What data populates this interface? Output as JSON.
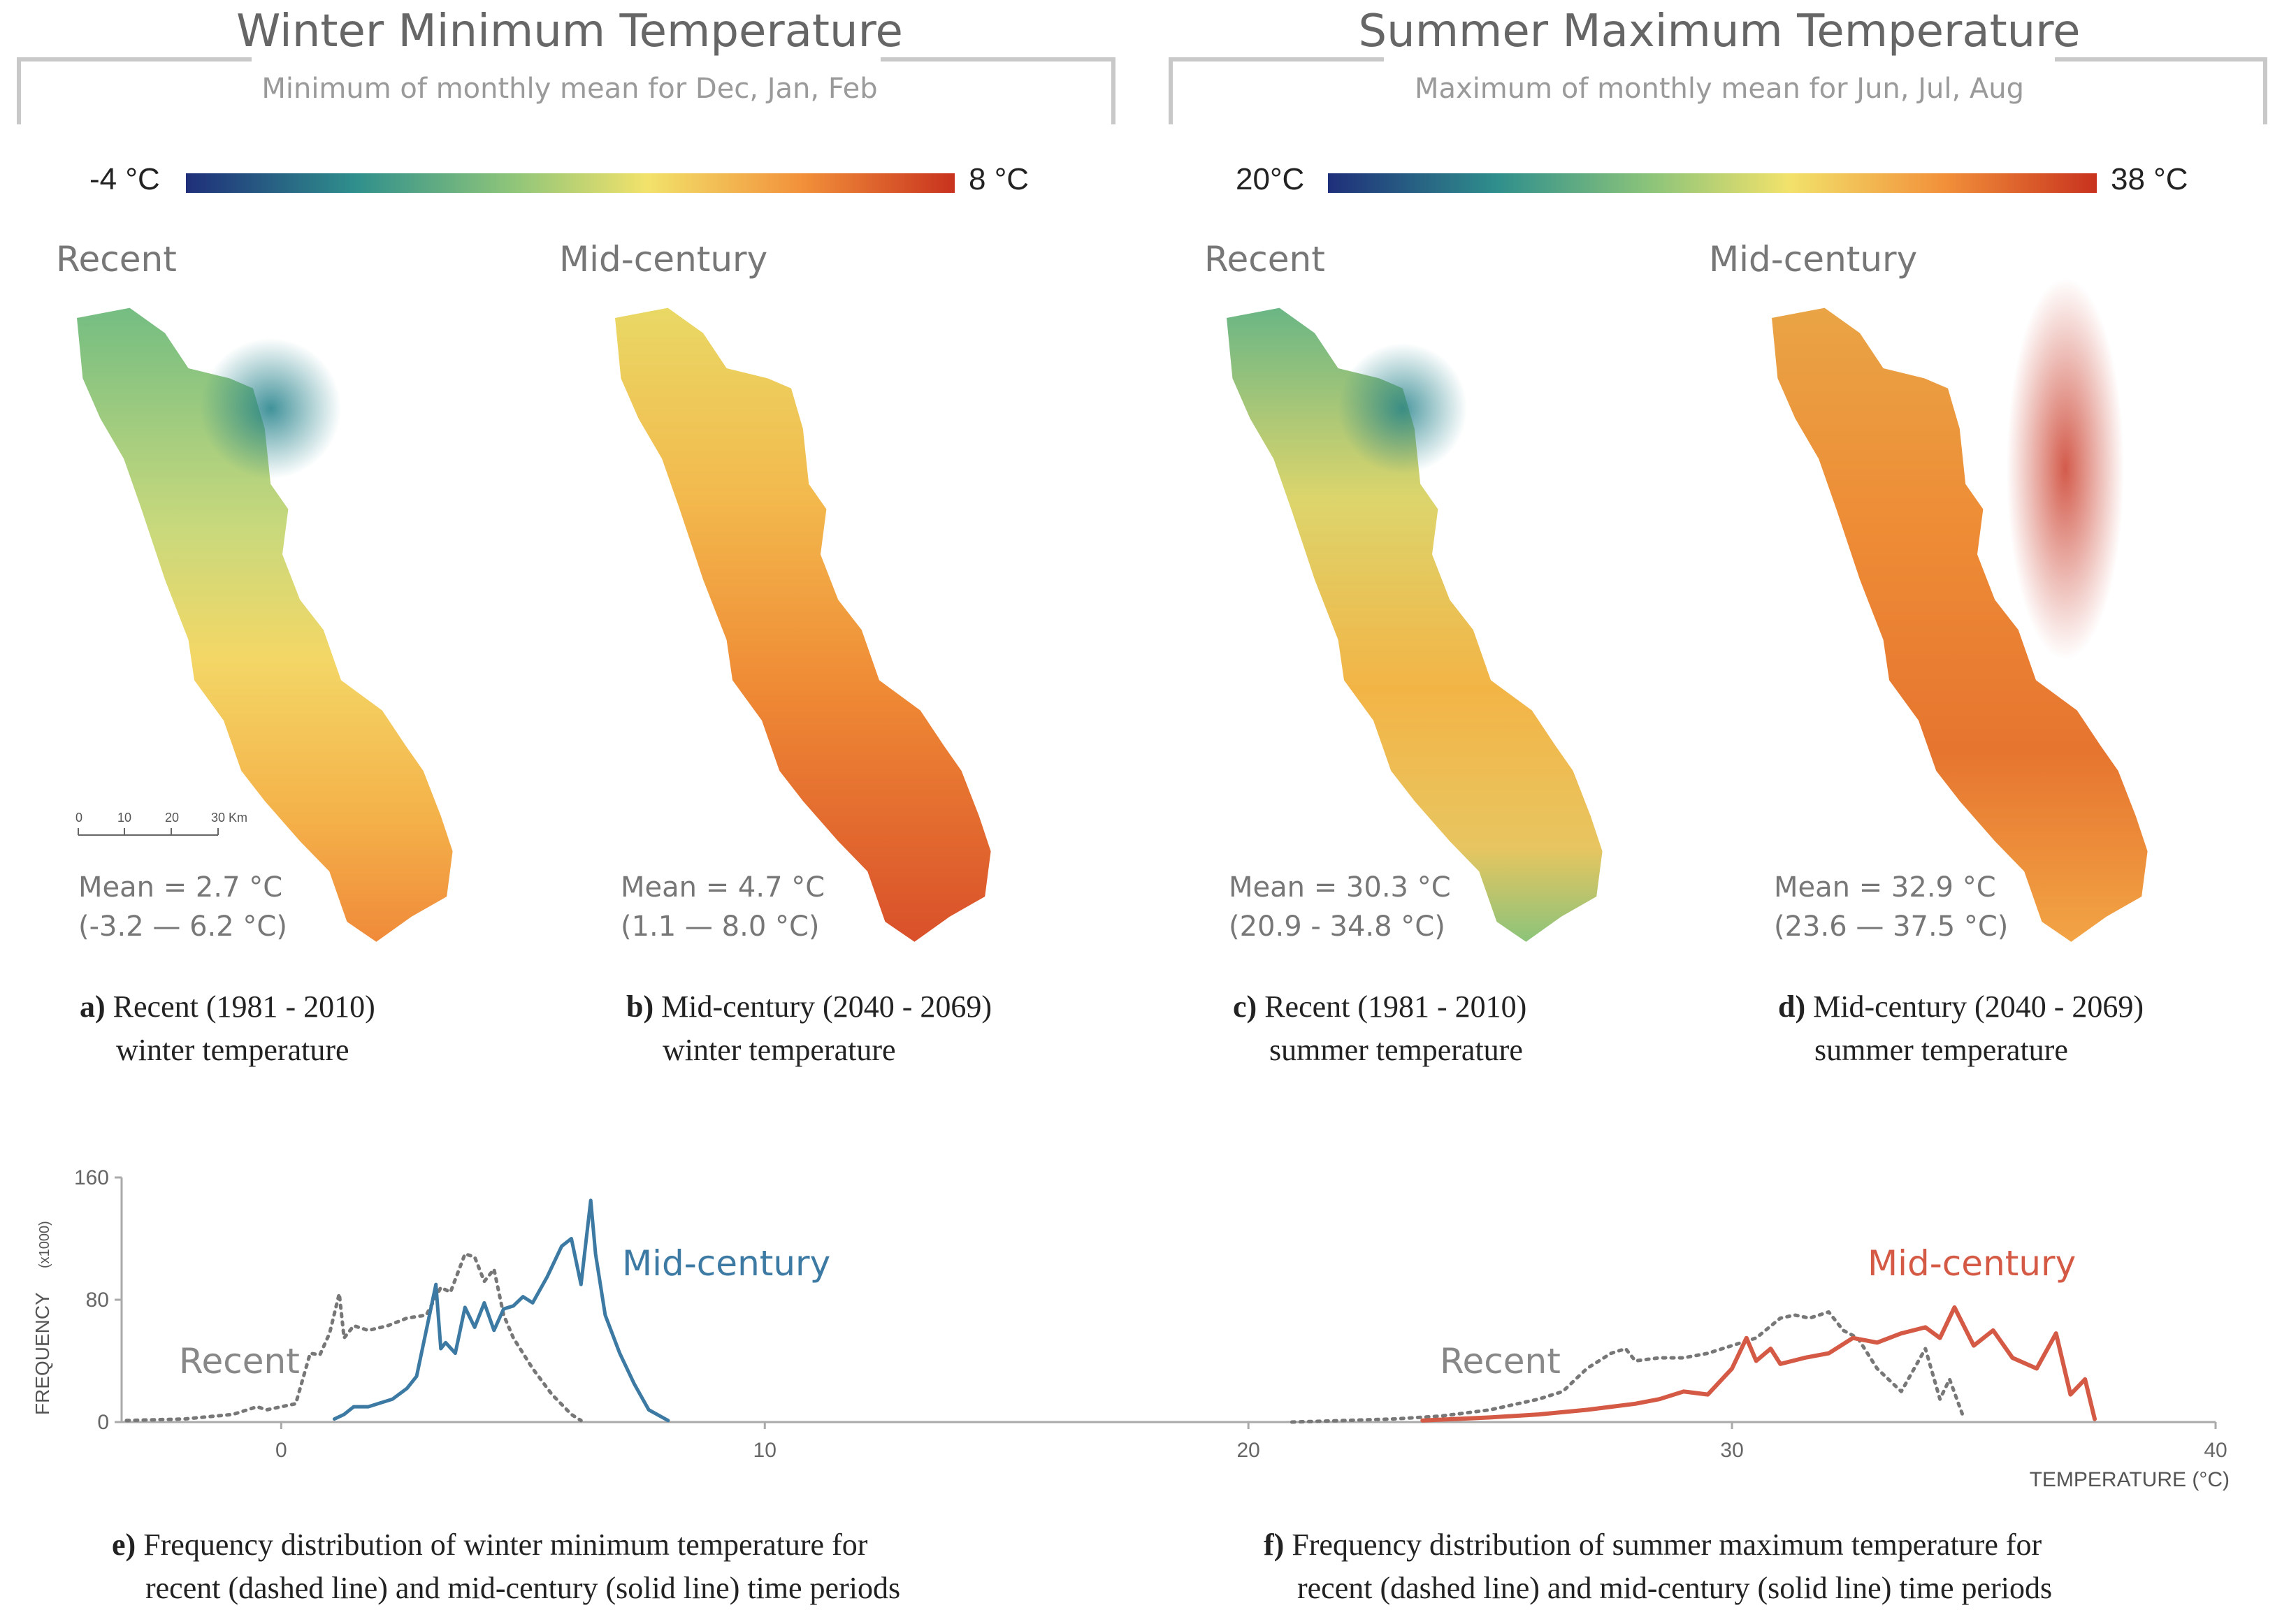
{
  "winter": {
    "title": "Winter Minimum Temperature",
    "subtitle": "Minimum of monthly mean for Dec, Jan, Feb",
    "scale_min": "-4 °C",
    "scale_max": "8 °C",
    "maps": [
      {
        "period": "Recent",
        "mean": "Mean = 2.7 °C",
        "range": "(-3.2 — 6.2 °C)",
        "caption_letter": "a)",
        "caption_line1": "Recent (1981 - 2010)",
        "caption_line2": "winter temperature"
      },
      {
        "period": "Mid-century",
        "mean": "Mean = 4.7 °C",
        "range": "(1.1 — 8.0 °C)",
        "caption_letter": "b)",
        "caption_line1": "Mid-century (2040 - 2069)",
        "caption_line2": "winter temperature"
      }
    ]
  },
  "summer": {
    "title": "Summer Maximum Temperature",
    "subtitle": "Maximum of monthly mean for Jun, Jul, Aug",
    "scale_min": "20°C",
    "scale_max": "38 °C",
    "maps": [
      {
        "period": "Recent",
        "mean": "Mean = 30.3 °C",
        "range": "(20.9 - 34.8 °C)",
        "caption_letter": "c)",
        "caption_line1": "Recent (1981 - 2010)",
        "caption_line2": "summer temperature"
      },
      {
        "period": "Mid-century",
        "mean": "Mean = 32.9 °C",
        "range": "(23.6 — 37.5 °C)",
        "caption_letter": "d)",
        "caption_line1": "Mid-century (2040 - 2069)",
        "caption_line2": "summer temperature"
      }
    ]
  },
  "scalebar": {
    "ticks": [
      "0",
      "10",
      "20",
      "30 Km"
    ]
  },
  "colors": {
    "cold": "#2c3e8c",
    "teal": "#2f8f8c",
    "green": "#8cc47a",
    "yellow": "#f2e26b",
    "orange": "#f2913a",
    "red": "#c8321e",
    "winter_line": "#3d7aa3",
    "summer_line": "#d55a45",
    "recent_line": "#777777",
    "axis": "#aaaaaa"
  },
  "chart_data": {
    "type": "line",
    "xlabel": "TEMPERATURE (°C)",
    "ylabel": "FREQUENCY",
    "ylabel_unit": "(x1000)",
    "xlim": [
      -3.3,
      40
    ],
    "ylim": [
      0,
      160
    ],
    "x_ticks": [
      0,
      10,
      20,
      30,
      40
    ],
    "y_ticks": [
      0,
      80,
      160
    ],
    "annotations": {
      "winter_recent": "Recent",
      "winter_mid": "Mid-century",
      "summer_recent": "Recent",
      "summer_mid": "Mid-century"
    },
    "series": [
      {
        "name": "Winter Recent",
        "style": "dotted",
        "x": [
          -3.2,
          -2,
          -1,
          -0.5,
          -0.3,
          0,
          0.3,
          0.6,
          0.8,
          1.0,
          1.2,
          1.3,
          1.5,
          1.8,
          2.2,
          2.6,
          3.0,
          3.3,
          3.5,
          3.8,
          4.0,
          4.2,
          4.4,
          4.6,
          4.8,
          5.2,
          5.6,
          6.0,
          6.2
        ],
        "y": [
          1,
          2,
          5,
          10,
          8,
          10,
          12,
          45,
          44,
          58,
          84,
          55,
          63,
          60,
          63,
          68,
          70,
          88,
          85,
          110,
          108,
          92,
          100,
          70,
          55,
          35,
          18,
          5,
          1
        ]
      },
      {
        "name": "Winter Mid-century",
        "style": "solid",
        "x": [
          1.1,
          1.3,
          1.5,
          1.8,
          2.0,
          2.3,
          2.6,
          2.8,
          3.0,
          3.2,
          3.3,
          3.4,
          3.6,
          3.8,
          4.0,
          4.2,
          4.4,
          4.6,
          4.8,
          5.0,
          5.2,
          5.5,
          5.8,
          6.0,
          6.2,
          6.4,
          6.5,
          6.7,
          7.0,
          7.3,
          7.6,
          8.0
        ],
        "y": [
          2,
          5,
          10,
          10,
          12,
          15,
          22,
          30,
          60,
          90,
          48,
          52,
          45,
          75,
          62,
          78,
          60,
          74,
          76,
          82,
          78,
          95,
          115,
          120,
          90,
          145,
          110,
          70,
          45,
          25,
          8,
          1
        ]
      },
      {
        "name": "Summer Recent",
        "style": "dotted",
        "x": [
          20.9,
          22,
          23,
          24,
          25,
          26,
          26.5,
          27,
          27.5,
          27.8,
          28,
          28.5,
          29,
          29.5,
          30,
          30.5,
          31,
          31.3,
          31.6,
          32,
          32.3,
          32.6,
          33,
          33.5,
          34,
          34.3,
          34.5,
          34.8
        ],
        "y": [
          0,
          1,
          2,
          4,
          8,
          15,
          20,
          35,
          45,
          48,
          40,
          42,
          42,
          45,
          50,
          55,
          68,
          70,
          68,
          72,
          60,
          55,
          35,
          20,
          48,
          15,
          28,
          2
        ]
      },
      {
        "name": "Summer Mid-century",
        "style": "solid",
        "x": [
          23.6,
          25,
          26,
          27,
          28,
          28.5,
          29,
          29.5,
          30,
          30.3,
          30.5,
          30.8,
          31,
          31.5,
          32,
          32.5,
          33,
          33.5,
          34,
          34.3,
          34.6,
          35,
          35.4,
          35.8,
          36.3,
          36.7,
          37,
          37.3,
          37.5
        ],
        "y": [
          1,
          3,
          5,
          8,
          12,
          15,
          20,
          18,
          35,
          55,
          40,
          48,
          38,
          42,
          45,
          55,
          52,
          58,
          62,
          55,
          75,
          50,
          60,
          42,
          35,
          58,
          18,
          28,
          2
        ]
      }
    ]
  },
  "bottom_captions": [
    {
      "letter": "e)",
      "line1": "Frequency distribution of winter minimum temperature for",
      "line2": "recent (dashed line) and mid-century (solid line) time periods"
    },
    {
      "letter": "f)",
      "line1": "Frequency distribution of summer maximum temperature for",
      "line2": "recent (dashed line) and mid-century (solid line) time periods"
    }
  ]
}
